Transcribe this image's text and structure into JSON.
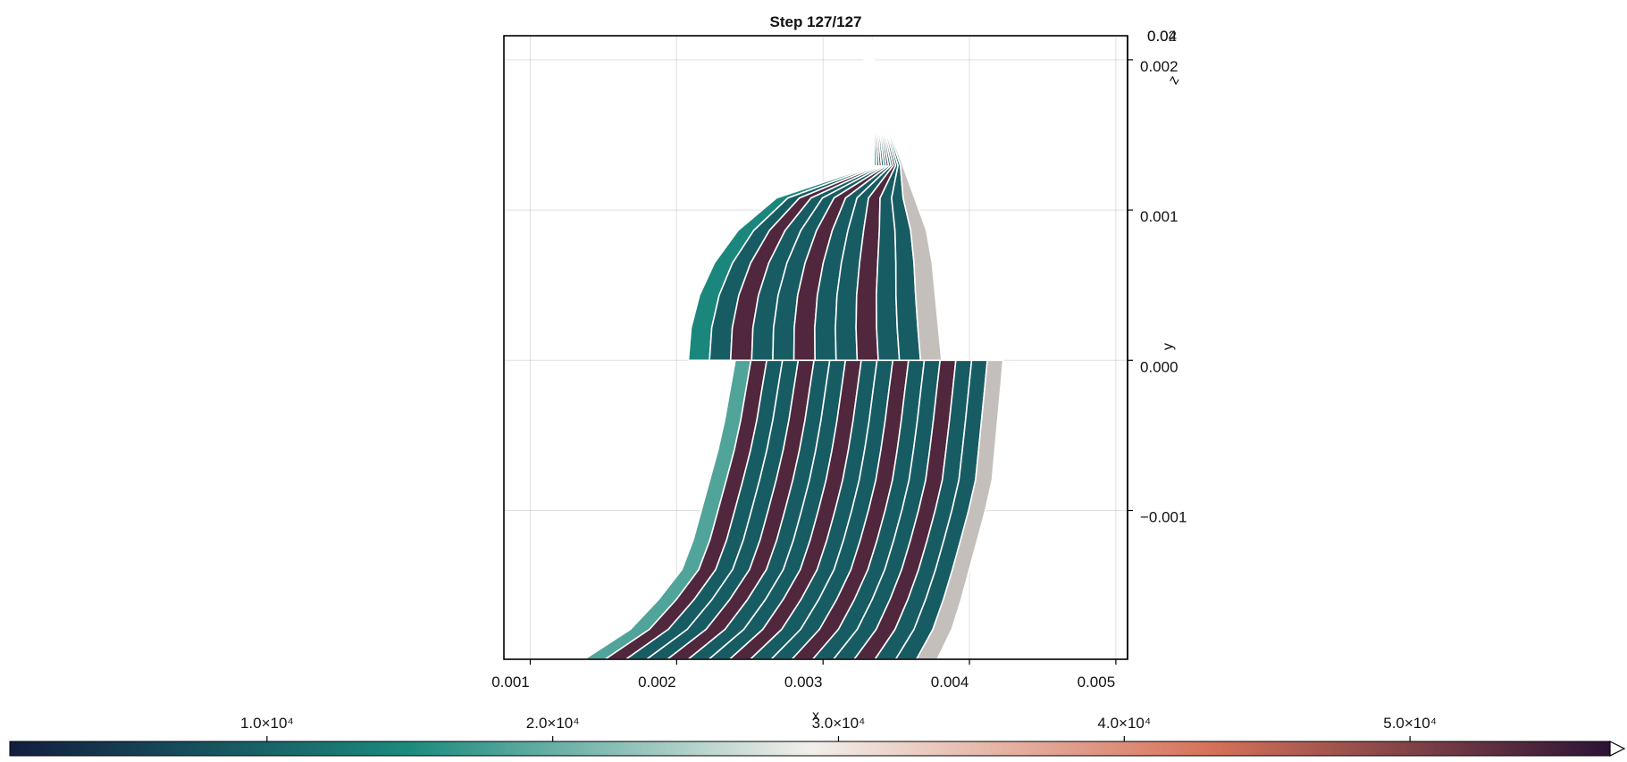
{
  "chart_data": {
    "type": "heatmap",
    "title": "Step 127/127",
    "xlabel": "x",
    "ylabel": "y",
    "zlabel": "z",
    "xlim": [
      0.00082,
      0.00508
    ],
    "ylim": [
      -0.00199,
      0.00216
    ],
    "x_ticks": [
      0.001,
      0.002,
      0.003,
      0.004,
      0.005
    ],
    "x_tick_labels": [
      "0.001",
      "0.002",
      "0.003",
      "0.004",
      "0.005"
    ],
    "y_ticks": [
      -0.001,
      0.0,
      0.001,
      0.002
    ],
    "y_tick_labels": [
      "−0.001",
      "0.000",
      "0.001",
      "0.002"
    ],
    "z_tick_labels_overlapping": [
      "0.04",
      "0.02"
    ],
    "grid": true,
    "colormap": [
      "#131d3e",
      "#1b8b7e",
      "#f2efea",
      "#d6725a",
      "#2c1335"
    ],
    "colorbar": {
      "range": [
        1000,
        57000
      ],
      "ticks": [
        10000,
        20000,
        30000,
        40000,
        50000
      ],
      "tick_labels": [
        "1.0×10⁴",
        "2.0×10⁴",
        "3.0×10⁴",
        "4.0×10⁴",
        "5.0×10⁴"
      ],
      "extend": "high"
    },
    "mesh": {
      "upper_half": {
        "rings": 12,
        "outer_profile": [
          {
            "y": 0.00216,
            "x": 0.00322
          },
          {
            "y": 0.00155,
            "x": 0.00345
          },
          {
            "y": 0.0008,
            "x": 0.00373
          },
          {
            "y": 0.0,
            "x": 0.00381
          }
        ],
        "layer_values": [
          14500,
          9000,
          54000,
          9000,
          9000,
          54000,
          9000,
          9000,
          54000,
          9000,
          9000,
          24000
        ]
      },
      "lower_half": {
        "rings": 17,
        "inner_profile": [
          {
            "y": 0.0,
            "x": 0.0024
          },
          {
            "y": -0.0005,
            "x": 0.00231
          },
          {
            "y": -0.00135,
            "x": 0.00207
          },
          {
            "y": -0.00175,
            "x": 0.00175
          },
          {
            "y": -0.00199,
            "x": 0.00137
          }
        ],
        "outer_profile": [
          {
            "y": 0.0,
            "x": 0.00423
          },
          {
            "y": -0.00085,
            "x": 0.00415
          },
          {
            "y": -0.00175,
            "x": 0.0039
          },
          {
            "y": -0.00199,
            "x": 0.00378
          }
        ],
        "layer_values": [
          18500,
          54000,
          9000,
          9000,
          54000,
          9000,
          9000,
          54000,
          9000,
          9000,
          54000,
          9000,
          9000,
          54000,
          9000,
          9000,
          24000
        ]
      }
    }
  }
}
